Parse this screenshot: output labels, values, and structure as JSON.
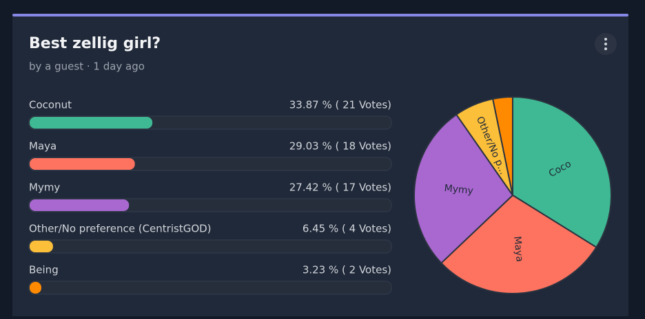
{
  "header": {
    "title": "Best zellig girl?",
    "subtitle": "by a guest · 1 day ago"
  },
  "options": [
    {
      "label": "Coconut",
      "percent": 33.87,
      "result": "33.87 % ( 21 Votes)",
      "color": "#3fb993",
      "pie_label": "Coco"
    },
    {
      "label": "Maya",
      "percent": 29.03,
      "result": "29.03 % ( 18 Votes)",
      "color": "#fd735f",
      "pie_label": "Maya"
    },
    {
      "label": "Mymy",
      "percent": 27.42,
      "result": "27.42 % ( 17 Votes)",
      "color": "#a967d0",
      "pie_label": "Mymy"
    },
    {
      "label": "Other/No preference (CentristGOD)",
      "percent": 6.45,
      "result": "6.45 % ( 4 Votes)",
      "color": "#fcbf3a",
      "pie_label": "Other/No p..."
    },
    {
      "label": "Being",
      "percent": 3.23,
      "result": "3.23 % ( 2 Votes)",
      "color": "#ff8a00"
    }
  ]
}
